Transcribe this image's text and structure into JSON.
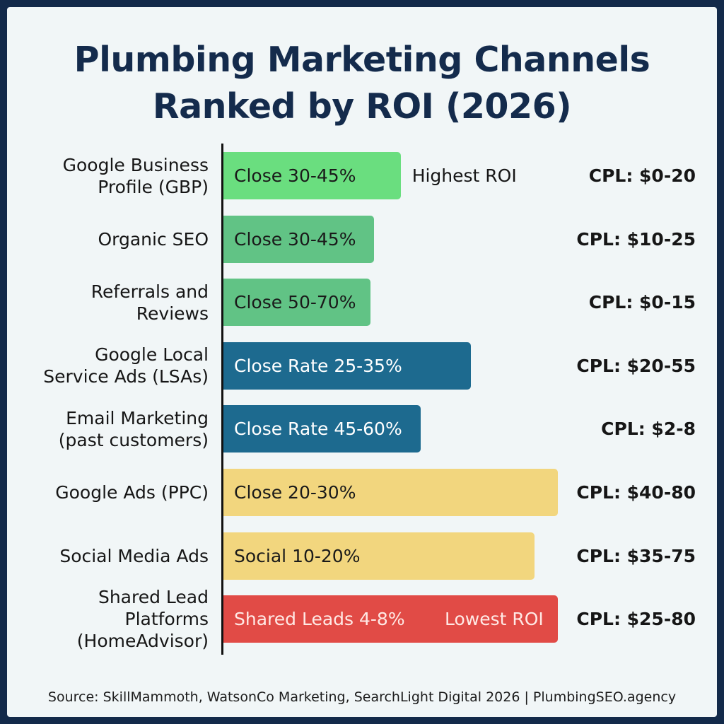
{
  "title_line1": "Plumbing Marketing Channels",
  "title_line2": "Ranked by ROI (2026)",
  "source": "Source: SkillMammoth, WatsonCo Marketing, SearchLight Digital 2026 | PlumbingSEO.agency",
  "colors": {
    "green_light": "#6ade7f",
    "green_mid": "#61c385",
    "blue": "#1d6a8f",
    "yellow": "#f2d67e",
    "red": "#e14b46"
  },
  "chart_data": {
    "type": "bar",
    "orientation": "horizontal",
    "categories": [
      "Google Business Profile (GBP)",
      "Organic SEO",
      "Referrals and Reviews",
      "Google Local Service Ads (LSAs)",
      "Email Marketing (past customers)",
      "Google Ads (PPC)",
      "Social Media Ads",
      "Shared Lead Platforms (HomeAdvisor)"
    ],
    "values": [
      0.53,
      0.45,
      0.44,
      0.74,
      0.59,
      1.0,
      0.93,
      1.0
    ],
    "bar_labels": [
      "Close 30-45%",
      "Close 30-45%",
      "Close 50-70%",
      "Close Rate 25-35%",
      "Close Rate 45-60%",
      "Close 20-30%",
      "Social 10-20%",
      "Shared Leads 4-8%"
    ],
    "annotations": [
      "Highest ROI",
      "",
      "",
      "",
      "",
      "",
      "",
      "Lowest ROI"
    ],
    "cpl_labels": [
      "CPL: $0-20",
      "CPL: $10-25",
      "CPL: $0-15",
      "CPL: $20-55",
      "CPL: $2-8",
      "CPL: $40-80",
      "CPL: $35-75",
      "CPL: $25-80"
    ],
    "bar_colors": [
      "#6ade7f",
      "#61c385",
      "#61c385",
      "#1d6a8f",
      "#1d6a8f",
      "#f2d67e",
      "#f2d67e",
      "#e14b46"
    ],
    "bar_text_colors": [
      "#1a1a1a",
      "#1a1a1a",
      "#1a1a1a",
      "#ffffff",
      "#ffffff",
      "#1a1a1a",
      "#1a1a1a",
      "#ffe9e5"
    ],
    "grid": false,
    "legend": "none",
    "xlabel": "",
    "ylabel": ""
  }
}
